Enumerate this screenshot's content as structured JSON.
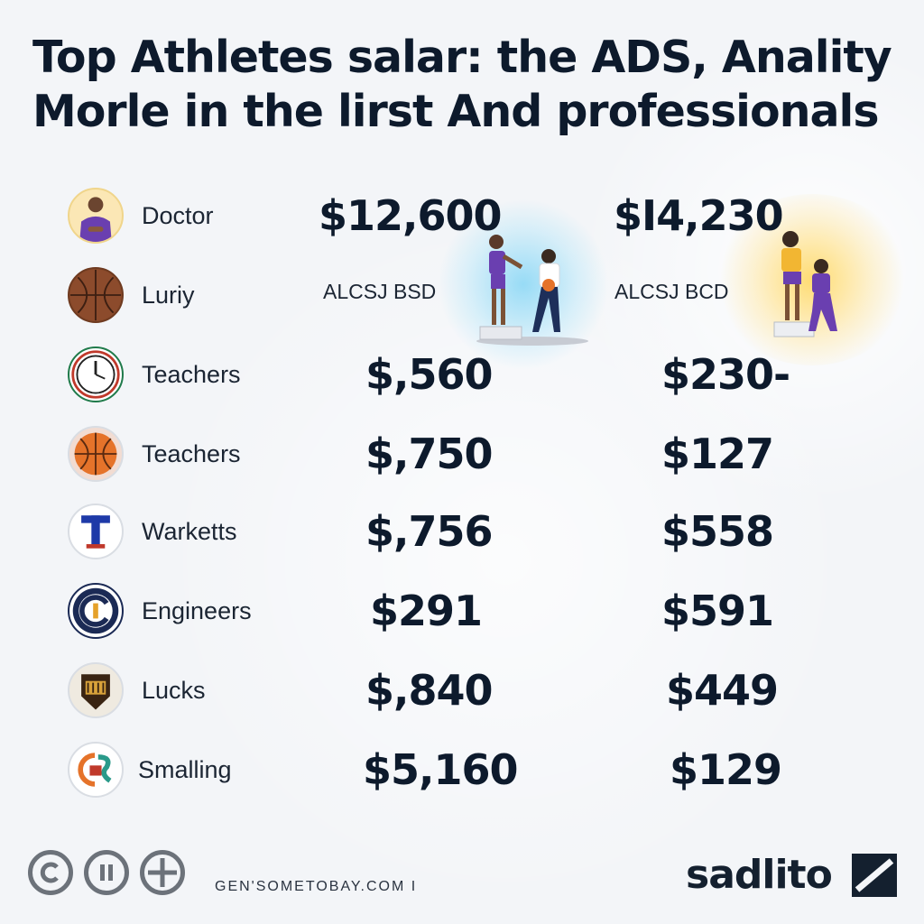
{
  "title": {
    "line1": "Top Athletes salar: the ADS, Anality",
    "line2": "Morle in the lirst And professionals"
  },
  "rows": [
    {
      "label": "Doctor",
      "icon": "doctor-avatar-icon",
      "col1": "$12,600",
      "col2": "$I4,230"
    },
    {
      "label": "Luriy",
      "icon": "basketball-icon",
      "col1": "ALCSJ BSD",
      "col2": "ALCSJ BCD"
    },
    {
      "label": "Teachers",
      "icon": "clock-icon",
      "col1": "$,560",
      "col2": "$230-"
    },
    {
      "label": "Teachers",
      "icon": "basketball-icon",
      "col1": "$,750",
      "col2": "$127"
    },
    {
      "label": "Warketts",
      "icon": "letter-t-logo-icon",
      "col1": "$,756",
      "col2": "$558"
    },
    {
      "label": "Engineers",
      "icon": "c-logo-icon",
      "col1": "$291",
      "col2": "$591"
    },
    {
      "label": "Lucks",
      "icon": "shield-crest-icon",
      "col1": "$,840",
      "col2": "$449"
    },
    {
      "label": "Smalling",
      "icon": "gs-logo-icon",
      "col1": "$5,160",
      "col2": "$129"
    }
  ],
  "illustrations": [
    {
      "icon": "athletes-basketball-illustration",
      "glow": "#7fd4f2"
    },
    {
      "icon": "athletes-podium-illustration",
      "glow": "#ffd65a"
    }
  ],
  "footer": {
    "icons": [
      "copyright-icon",
      "pause-icon",
      "crosshair-icon"
    ],
    "url": "GEN'SOMETOBAY.COM I",
    "brand": "sadlito",
    "brand_icon": "slash-square-icon"
  },
  "colors": {
    "background": "#f3f5f8",
    "text": "#0d1a2c",
    "purple": "#6a3fb0",
    "orange": "#e5732a"
  }
}
